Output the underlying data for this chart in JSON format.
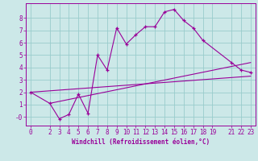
{
  "title": "",
  "xlabel": "Windchill (Refroidissement éolien,°C)",
  "ylabel": "",
  "bg_color": "#cce8e8",
  "grid_color": "#99cccc",
  "line_color": "#990099",
  "spine_color": "#990099",
  "xlim": [
    -0.5,
    23.5
  ],
  "ylim": [
    -0.7,
    9.2
  ],
  "xticks": [
    0,
    2,
    3,
    4,
    5,
    6,
    7,
    8,
    9,
    10,
    11,
    12,
    13,
    14,
    15,
    16,
    17,
    18,
    19,
    21,
    22,
    23
  ],
  "yticks": [
    0,
    1,
    2,
    3,
    4,
    5,
    6,
    7,
    8
  ],
  "ytick_labels": [
    "-0",
    "1",
    "2",
    "3",
    "4",
    "5",
    "6",
    "7",
    "8"
  ],
  "line1_x": [
    0,
    2,
    3,
    4,
    5,
    6,
    7,
    8,
    9,
    10,
    11,
    12,
    13,
    14,
    15,
    16,
    17,
    18,
    21,
    22,
    23
  ],
  "line1_y": [
    2.0,
    1.1,
    -0.15,
    0.2,
    1.85,
    0.3,
    5.0,
    3.8,
    7.2,
    5.9,
    6.65,
    7.3,
    7.3,
    8.5,
    8.7,
    7.8,
    7.2,
    6.2,
    4.4,
    3.8,
    3.6
  ],
  "line2_x": [
    0,
    23
  ],
  "line2_y": [
    2.0,
    3.3
  ],
  "line3_x": [
    2,
    23
  ],
  "line3_y": [
    1.1,
    4.4
  ],
  "tick_fontsize": 5.5,
  "xlabel_fontsize": 5.5
}
